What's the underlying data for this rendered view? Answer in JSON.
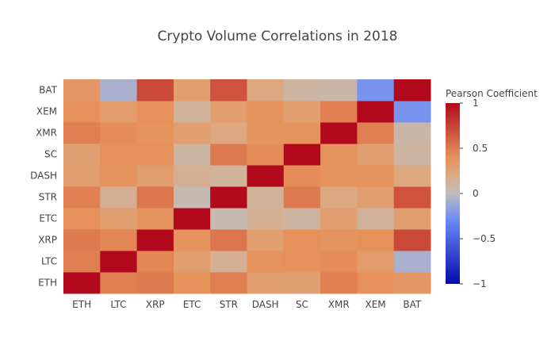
{
  "chart_data": {
    "type": "heatmap",
    "title": "Crypto Volume Correlations in 2018",
    "x_categories": [
      "ETH",
      "LTC",
      "XRP",
      "ETC",
      "STR",
      "DASH",
      "SC",
      "XMR",
      "XEM",
      "BAT"
    ],
    "y_categories": [
      "ETH",
      "LTC",
      "XRP",
      "ETC",
      "STR",
      "DASH",
      "SC",
      "XMR",
      "XEM",
      "BAT"
    ],
    "z": [
      [
        1.0,
        0.48,
        0.5,
        0.4,
        0.48,
        0.3,
        0.28,
        0.48,
        0.4,
        0.35
      ],
      [
        0.48,
        1.0,
        0.45,
        0.3,
        0.15,
        0.38,
        0.4,
        0.42,
        0.32,
        -0.08
      ],
      [
        0.5,
        0.45,
        1.0,
        0.38,
        0.52,
        0.3,
        0.4,
        0.38,
        0.4,
        0.72
      ],
      [
        0.4,
        0.3,
        0.38,
        1.0,
        0.05,
        0.15,
        0.1,
        0.3,
        0.12,
        0.3
      ],
      [
        0.48,
        0.15,
        0.52,
        0.05,
        1.0,
        0.12,
        0.5,
        0.22,
        0.3,
        0.68
      ],
      [
        0.3,
        0.38,
        0.3,
        0.15,
        0.12,
        1.0,
        0.42,
        0.38,
        0.38,
        0.22
      ],
      [
        0.28,
        0.4,
        0.4,
        0.1,
        0.5,
        0.42,
        1.0,
        0.38,
        0.3,
        0.1
      ],
      [
        0.48,
        0.42,
        0.38,
        0.3,
        0.22,
        0.38,
        0.38,
        1.0,
        0.48,
        0.08
      ],
      [
        0.4,
        0.32,
        0.4,
        0.12,
        0.3,
        0.38,
        0.3,
        0.48,
        1.0,
        -0.25
      ],
      [
        0.35,
        -0.08,
        0.72,
        0.3,
        0.68,
        0.22,
        0.1,
        0.08,
        -0.25,
        1.0
      ]
    ],
    "zmin": -1,
    "zmax": 1,
    "colorscale": "RdBu (reversed)",
    "colorbar": {
      "title": "Pearson Coefficient",
      "tickvals": [
        1,
        0.5,
        0,
        -0.5,
        -1
      ],
      "ticktext": [
        "1",
        "0.5",
        "0",
        "−0.5",
        "−1"
      ]
    },
    "colors": {
      "low": "#0a1aa8",
      "mid": "#c8c8c8",
      "high": "#b0102a"
    }
  }
}
